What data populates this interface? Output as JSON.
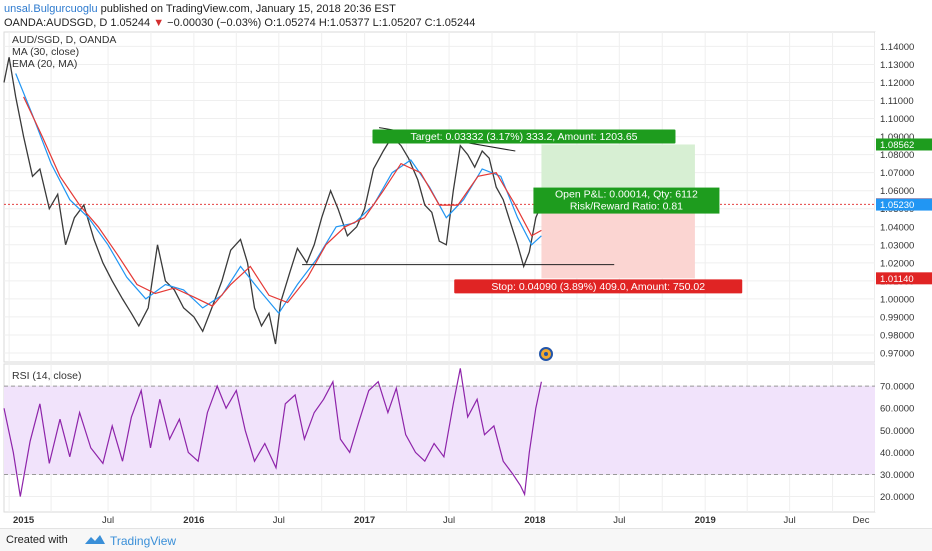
{
  "header": {
    "author": "unsal.Bulgurcuoglu",
    "published": "published on TradingView.com, January 15, 2018 20:36 EST",
    "symbol": "OANDA:AUDSGD, D",
    "last": "1.05244",
    "change_arrow": "▼",
    "change": "−0.00030 (−0.03%)",
    "ohlc": "O:1.05274 H:1.05377 L:1.05207 C:1.05244"
  },
  "legend": {
    "line1": "AUD/SGD, D, OANDA",
    "line2": "MA (30, close)",
    "line3": "EMA (20, MA)"
  },
  "rsi_title": "RSI (14, close)",
  "tags": {
    "target": "Target: 0.03332 (3.17%) 333.2, Amount: 1203.65",
    "open_pl": "Open P&L: 0.00014, Qty: 6112",
    "risk_reward": "Risk/Reward Ratio: 0.81",
    "stop": "Stop: 0.04090 (3.89%) 409.0, Amount: 750.02"
  },
  "footer": {
    "created": "Created with",
    "brand": "TradingView"
  },
  "colors": {
    "ma": "#2196f3",
    "ema": "#e53935",
    "rsi": "#8e24aa",
    "rsi_band": "#f1e3fb",
    "target_zone": "#d7efd3",
    "stop_zone": "#fbd5d2",
    "target_tag": "#1e9c1e",
    "stop_tag": "#e02424"
  },
  "chart_data": {
    "type": "line",
    "title": "AUD/SGD, D, OANDA",
    "price_axis": {
      "ticks": [
        "1.14000",
        "1.13000",
        "1.12000",
        "1.11000",
        "1.10000",
        "1.09000",
        "1.08000",
        "1.07000",
        "1.06000",
        "1.05000",
        "1.04000",
        "1.03000",
        "1.02000",
        "1.01000",
        "1.00000",
        "0.99000",
        "0.98000",
        "0.97000"
      ],
      "range": [
        0.965,
        1.148
      ],
      "labels": [
        {
          "text": "1.08562",
          "value": 1.08562,
          "color": "#1e9c1e"
        },
        {
          "text": "1.05244",
          "value": 1.05244,
          "color": "#e02424"
        },
        {
          "text": "1.05230",
          "value": 1.0523,
          "color": "#2196f3"
        },
        {
          "text": "1.01140",
          "value": 1.0114,
          "color": "#e02424"
        }
      ]
    },
    "rsi_axis": {
      "ticks": [
        "70.0000",
        "60.0000",
        "50.0000",
        "40.0000",
        "30.0000",
        "20.0000"
      ],
      "range": [
        13,
        80
      ],
      "band": [
        30,
        70
      ]
    },
    "time_axis": {
      "ticks": [
        "2015",
        "Jul",
        "2016",
        "Jul",
        "2017",
        "Jul",
        "2018",
        "Jul",
        "2019",
        "Jul",
        "Dec"
      ],
      "range": [
        "2014-11-20",
        "2019-12-31"
      ]
    },
    "price_series": [
      {
        "date": "2014-11-20",
        "value": 1.12
      },
      {
        "date": "2014-12-01",
        "value": 1.134
      },
      {
        "date": "2014-12-15",
        "value": 1.112
      },
      {
        "date": "2015-01-01",
        "value": 1.09
      },
      {
        "date": "2015-01-20",
        "value": 1.068
      },
      {
        "date": "2015-02-05",
        "value": 1.072
      },
      {
        "date": "2015-02-25",
        "value": 1.05
      },
      {
        "date": "2015-03-15",
        "value": 1.058
      },
      {
        "date": "2015-04-01",
        "value": 1.03
      },
      {
        "date": "2015-04-20",
        "value": 1.045
      },
      {
        "date": "2015-05-10",
        "value": 1.052
      },
      {
        "date": "2015-06-01",
        "value": 1.033
      },
      {
        "date": "2015-06-20",
        "value": 1.02
      },
      {
        "date": "2015-07-10",
        "value": 1.01
      },
      {
        "date": "2015-08-01",
        "value": 1.0
      },
      {
        "date": "2015-08-20",
        "value": 0.992
      },
      {
        "date": "2015-09-05",
        "value": 0.985
      },
      {
        "date": "2015-09-25",
        "value": 0.995
      },
      {
        "date": "2015-10-15",
        "value": 1.03
      },
      {
        "date": "2015-11-01",
        "value": 1.01
      },
      {
        "date": "2015-11-20",
        "value": 1.005
      },
      {
        "date": "2015-12-10",
        "value": 0.995
      },
      {
        "date": "2016-01-01",
        "value": 0.99
      },
      {
        "date": "2016-01-20",
        "value": 0.982
      },
      {
        "date": "2016-02-10",
        "value": 0.996
      },
      {
        "date": "2016-03-01",
        "value": 1.01
      },
      {
        "date": "2016-03-20",
        "value": 1.027
      },
      {
        "date": "2016-04-10",
        "value": 1.033
      },
      {
        "date": "2016-04-25",
        "value": 1.02
      },
      {
        "date": "2016-05-10",
        "value": 0.995
      },
      {
        "date": "2016-05-25",
        "value": 0.985
      },
      {
        "date": "2016-06-10",
        "value": 0.992
      },
      {
        "date": "2016-06-24",
        "value": 0.975
      },
      {
        "date": "2016-07-05",
        "value": 0.998
      },
      {
        "date": "2016-07-25",
        "value": 1.015
      },
      {
        "date": "2016-08-10",
        "value": 1.028
      },
      {
        "date": "2016-08-30",
        "value": 1.02
      },
      {
        "date": "2016-09-15",
        "value": 1.03
      },
      {
        "date": "2016-10-01",
        "value": 1.045
      },
      {
        "date": "2016-10-20",
        "value": 1.06
      },
      {
        "date": "2016-11-05",
        "value": 1.05
      },
      {
        "date": "2016-11-25",
        "value": 1.035
      },
      {
        "date": "2016-12-15",
        "value": 1.04
      },
      {
        "date": "2017-01-01",
        "value": 1.05
      },
      {
        "date": "2017-01-20",
        "value": 1.072
      },
      {
        "date": "2017-02-10",
        "value": 1.082
      },
      {
        "date": "2017-03-01",
        "value": 1.09
      },
      {
        "date": "2017-03-20",
        "value": 1.085
      },
      {
        "date": "2017-04-05",
        "value": 1.078
      },
      {
        "date": "2017-04-25",
        "value": 1.066
      },
      {
        "date": "2017-05-10",
        "value": 1.052
      },
      {
        "date": "2017-05-25",
        "value": 1.048
      },
      {
        "date": "2017-06-10",
        "value": 1.032
      },
      {
        "date": "2017-06-25",
        "value": 1.03
      },
      {
        "date": "2017-07-10",
        "value": 1.06
      },
      {
        "date": "2017-07-25",
        "value": 1.085
      },
      {
        "date": "2017-08-10",
        "value": 1.08
      },
      {
        "date": "2017-08-25",
        "value": 1.073
      },
      {
        "date": "2017-09-10",
        "value": 1.082
      },
      {
        "date": "2017-09-25",
        "value": 1.078
      },
      {
        "date": "2017-10-10",
        "value": 1.062
      },
      {
        "date": "2017-10-25",
        "value": 1.055
      },
      {
        "date": "2017-11-10",
        "value": 1.042
      },
      {
        "date": "2017-11-25",
        "value": 1.03
      },
      {
        "date": "2017-12-08",
        "value": 1.018
      },
      {
        "date": "2017-12-20",
        "value": 1.026
      },
      {
        "date": "2018-01-03",
        "value": 1.045
      },
      {
        "date": "2018-01-15",
        "value": 1.0524
      }
    ],
    "ma_series": [
      {
        "date": "2014-12-15",
        "value": 1.125
      },
      {
        "date": "2015-01-20",
        "value": 1.102
      },
      {
        "date": "2015-03-01",
        "value": 1.075
      },
      {
        "date": "2015-04-10",
        "value": 1.055
      },
      {
        "date": "2015-05-20",
        "value": 1.045
      },
      {
        "date": "2015-07-01",
        "value": 1.03
      },
      {
        "date": "2015-08-10",
        "value": 1.012
      },
      {
        "date": "2015-09-20",
        "value": 1.0
      },
      {
        "date": "2015-11-01",
        "value": 1.008
      },
      {
        "date": "2015-12-10",
        "value": 1.005
      },
      {
        "date": "2016-01-20",
        "value": 0.995
      },
      {
        "date": "2016-03-01",
        "value": 1.002
      },
      {
        "date": "2016-04-10",
        "value": 1.018
      },
      {
        "date": "2016-05-20",
        "value": 1.005
      },
      {
        "date": "2016-07-01",
        "value": 0.992
      },
      {
        "date": "2016-08-10",
        "value": 1.008
      },
      {
        "date": "2016-09-20",
        "value": 1.022
      },
      {
        "date": "2016-11-01",
        "value": 1.04
      },
      {
        "date": "2016-12-10",
        "value": 1.042
      },
      {
        "date": "2017-01-20",
        "value": 1.052
      },
      {
        "date": "2017-03-01",
        "value": 1.07
      },
      {
        "date": "2017-04-10",
        "value": 1.077
      },
      {
        "date": "2017-05-20",
        "value": 1.062
      },
      {
        "date": "2017-06-25",
        "value": 1.045
      },
      {
        "date": "2017-08-01",
        "value": 1.055
      },
      {
        "date": "2017-09-10",
        "value": 1.072
      },
      {
        "date": "2017-10-20",
        "value": 1.068
      },
      {
        "date": "2017-11-25",
        "value": 1.045
      },
      {
        "date": "2017-12-25",
        "value": 1.03
      },
      {
        "date": "2018-01-15",
        "value": 1.035
      }
    ],
    "ema_series": [
      {
        "date": "2015-01-01",
        "value": 1.112
      },
      {
        "date": "2015-02-10",
        "value": 1.09
      },
      {
        "date": "2015-03-20",
        "value": 1.068
      },
      {
        "date": "2015-05-01",
        "value": 1.052
      },
      {
        "date": "2015-06-10",
        "value": 1.04
      },
      {
        "date": "2015-07-20",
        "value": 1.025
      },
      {
        "date": "2015-09-01",
        "value": 1.008
      },
      {
        "date": "2015-10-10",
        "value": 1.003
      },
      {
        "date": "2015-11-20",
        "value": 1.006
      },
      {
        "date": "2016-01-01",
        "value": 1.001
      },
      {
        "date": "2016-02-10",
        "value": 0.996
      },
      {
        "date": "2016-03-20",
        "value": 1.008
      },
      {
        "date": "2016-05-01",
        "value": 1.018
      },
      {
        "date": "2016-06-10",
        "value": 1.002
      },
      {
        "date": "2016-07-20",
        "value": 0.998
      },
      {
        "date": "2016-09-01",
        "value": 1.012
      },
      {
        "date": "2016-10-10",
        "value": 1.03
      },
      {
        "date": "2016-11-20",
        "value": 1.04
      },
      {
        "date": "2017-01-01",
        "value": 1.045
      },
      {
        "date": "2017-02-10",
        "value": 1.06
      },
      {
        "date": "2017-03-20",
        "value": 1.075
      },
      {
        "date": "2017-05-01",
        "value": 1.07
      },
      {
        "date": "2017-06-10",
        "value": 1.052
      },
      {
        "date": "2017-07-20",
        "value": 1.052
      },
      {
        "date": "2017-09-01",
        "value": 1.068
      },
      {
        "date": "2017-10-10",
        "value": 1.07
      },
      {
        "date": "2017-11-20",
        "value": 1.052
      },
      {
        "date": "2017-12-25",
        "value": 1.035
      },
      {
        "date": "2018-01-15",
        "value": 1.038
      }
    ],
    "rsi_series": [
      {
        "date": "2014-11-20",
        "value": 60
      },
      {
        "date": "2014-12-10",
        "value": 40
      },
      {
        "date": "2014-12-25",
        "value": 20
      },
      {
        "date": "2015-01-15",
        "value": 45
      },
      {
        "date": "2015-02-05",
        "value": 62
      },
      {
        "date": "2015-02-25",
        "value": 35
      },
      {
        "date": "2015-03-20",
        "value": 55
      },
      {
        "date": "2015-04-10",
        "value": 38
      },
      {
        "date": "2015-05-01",
        "value": 58
      },
      {
        "date": "2015-05-25",
        "value": 42
      },
      {
        "date": "2015-06-20",
        "value": 35
      },
      {
        "date": "2015-07-10",
        "value": 52
      },
      {
        "date": "2015-08-01",
        "value": 36
      },
      {
        "date": "2015-08-20",
        "value": 56
      },
      {
        "date": "2015-09-10",
        "value": 68
      },
      {
        "date": "2015-09-30",
        "value": 42
      },
      {
        "date": "2015-10-20",
        "value": 64
      },
      {
        "date": "2015-11-10",
        "value": 46
      },
      {
        "date": "2015-12-01",
        "value": 55
      },
      {
        "date": "2015-12-20",
        "value": 40
      },
      {
        "date": "2016-01-10",
        "value": 36
      },
      {
        "date": "2016-01-30",
        "value": 58
      },
      {
        "date": "2016-02-20",
        "value": 70
      },
      {
        "date": "2016-03-10",
        "value": 60
      },
      {
        "date": "2016-04-01",
        "value": 68
      },
      {
        "date": "2016-04-20",
        "value": 50
      },
      {
        "date": "2016-05-10",
        "value": 36
      },
      {
        "date": "2016-06-01",
        "value": 44
      },
      {
        "date": "2016-06-25",
        "value": 33
      },
      {
        "date": "2016-07-15",
        "value": 62
      },
      {
        "date": "2016-08-05",
        "value": 66
      },
      {
        "date": "2016-08-25",
        "value": 46
      },
      {
        "date": "2016-09-15",
        "value": 58
      },
      {
        "date": "2016-10-05",
        "value": 64
      },
      {
        "date": "2016-10-25",
        "value": 72
      },
      {
        "date": "2016-11-10",
        "value": 46
      },
      {
        "date": "2016-11-30",
        "value": 40
      },
      {
        "date": "2016-12-20",
        "value": 54
      },
      {
        "date": "2017-01-10",
        "value": 68
      },
      {
        "date": "2017-01-30",
        "value": 72
      },
      {
        "date": "2017-02-20",
        "value": 58
      },
      {
        "date": "2017-03-10",
        "value": 69
      },
      {
        "date": "2017-03-30",
        "value": 48
      },
      {
        "date": "2017-04-20",
        "value": 40
      },
      {
        "date": "2017-05-10",
        "value": 36
      },
      {
        "date": "2017-05-30",
        "value": 44
      },
      {
        "date": "2017-06-20",
        "value": 38
      },
      {
        "date": "2017-07-10",
        "value": 62
      },
      {
        "date": "2017-07-25",
        "value": 78
      },
      {
        "date": "2017-08-10",
        "value": 56
      },
      {
        "date": "2017-08-30",
        "value": 64
      },
      {
        "date": "2017-09-15",
        "value": 48
      },
      {
        "date": "2017-10-05",
        "value": 52
      },
      {
        "date": "2017-10-25",
        "value": 36
      },
      {
        "date": "2017-11-15",
        "value": 30
      },
      {
        "date": "2017-12-01",
        "value": 25
      },
      {
        "date": "2017-12-10",
        "value": 21
      },
      {
        "date": "2017-12-20",
        "value": 40
      },
      {
        "date": "2018-01-03",
        "value": 60
      },
      {
        "date": "2018-01-15",
        "value": 72
      }
    ],
    "trendlines": [
      {
        "x1": "2017-02-01",
        "y1": 1.095,
        "x2": "2017-11-20",
        "y2": 1.082
      },
      {
        "x1": "2016-08-20",
        "y1": 1.019,
        "x2": "2018-06-20",
        "y2": 1.019
      }
    ],
    "position": {
      "entry_date": "2018-01-15",
      "end_date": "2018-12-10",
      "entry": 1.0523,
      "target": 1.08562,
      "stop": 1.0114
    }
  }
}
